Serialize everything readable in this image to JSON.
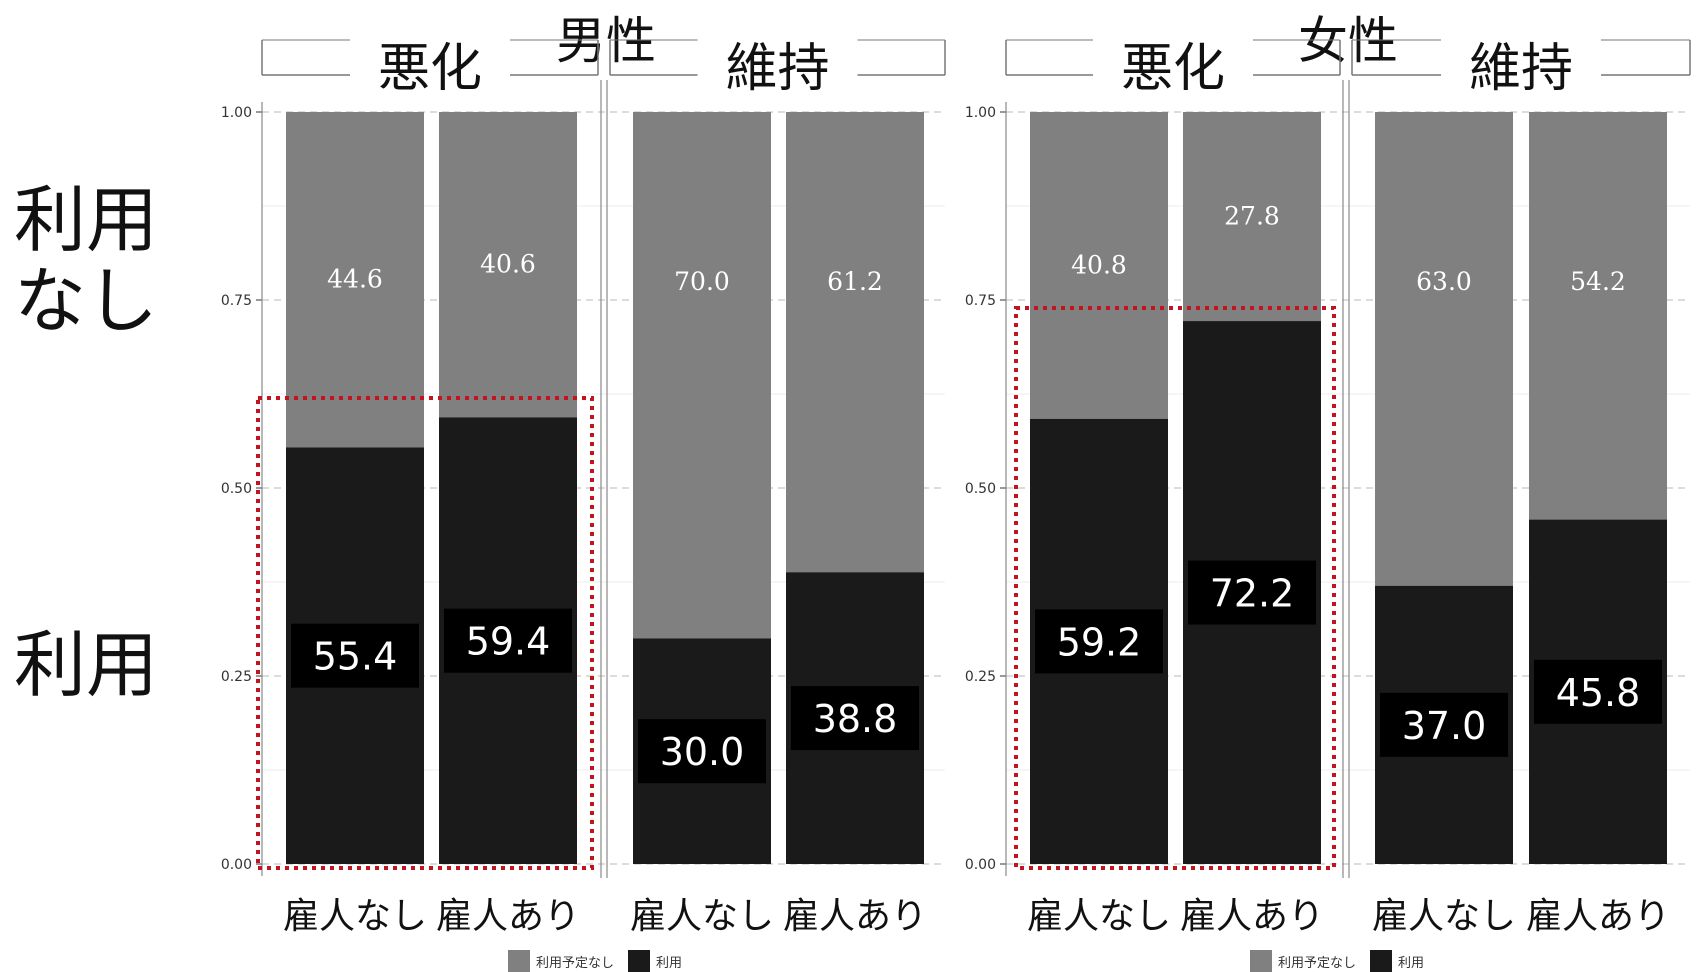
{
  "row_labels": {
    "top_line1": "利用",
    "top_line2": "なし",
    "bottom": "利用"
  },
  "legend": [
    {
      "label": "利用予定なし",
      "color": "#808080"
    },
    {
      "label": "利用",
      "color": "#1a1a1a"
    }
  ],
  "chart_data": {
    "type": "bar",
    "stacked": true,
    "ylim": [
      0,
      1
    ],
    "yticks": [
      "0.00",
      "0.25",
      "0.50",
      "0.75",
      "1.00"
    ],
    "grid": true,
    "legend_position": "bottom",
    "colors": {
      "not_planned": "#808080",
      "used": "#1a1a1a"
    },
    "panels": [
      {
        "group": "男性",
        "facets": [
          {
            "title": "悪化",
            "highlight": true,
            "categories": [
              "雇人なし",
              "雇人あり"
            ],
            "series": [
              {
                "name": "利用予定なし",
                "values": [
                  44.6,
                  40.6
                ]
              },
              {
                "name": "利用",
                "values": [
                  55.4,
                  59.4
                ]
              }
            ]
          },
          {
            "title": "維持",
            "highlight": false,
            "categories": [
              "雇人なし",
              "雇人あり"
            ],
            "series": [
              {
                "name": "利用予定なし",
                "values": [
                  70.0,
                  61.2
                ]
              },
              {
                "name": "利用",
                "values": [
                  30.0,
                  38.8
                ]
              }
            ]
          }
        ]
      },
      {
        "group": "女性",
        "facets": [
          {
            "title": "悪化",
            "highlight": true,
            "categories": [
              "雇人なし",
              "雇人あり"
            ],
            "series": [
              {
                "name": "利用予定なし",
                "values": [
                  40.8,
                  27.8
                ]
              },
              {
                "name": "利用",
                "values": [
                  59.2,
                  72.2
                ]
              }
            ]
          },
          {
            "title": "維持",
            "highlight": false,
            "categories": [
              "雇人なし",
              "雇人あり"
            ],
            "series": [
              {
                "name": "利用予定なし",
                "values": [
                  63.0,
                  54.2
                ]
              },
              {
                "name": "利用",
                "values": [
                  37.0,
                  45.8
                ]
              }
            ]
          }
        ]
      }
    ]
  }
}
